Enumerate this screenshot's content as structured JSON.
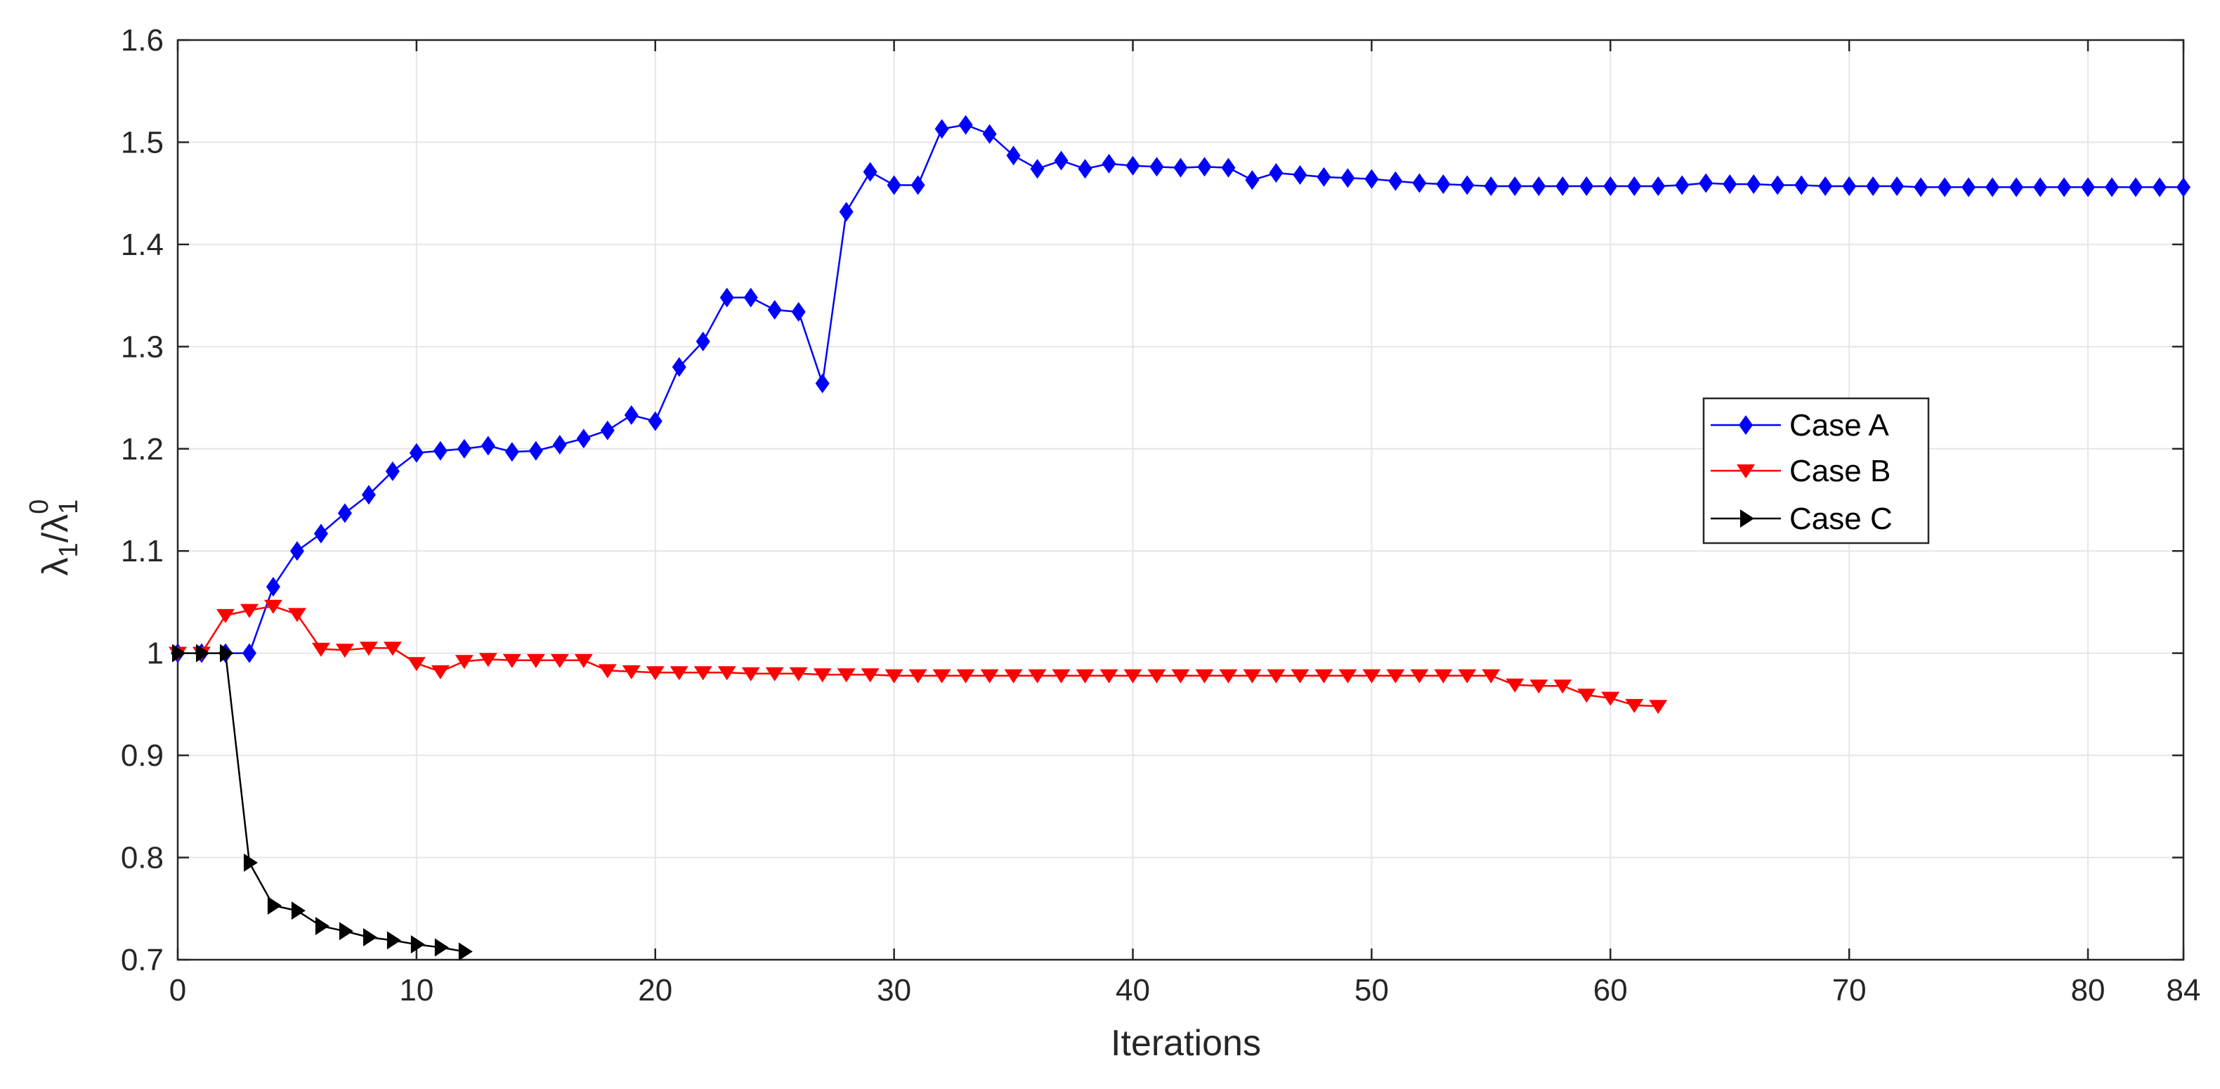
{
  "chart_data": {
    "type": "line",
    "xlabel": "Iterations",
    "ylabel": {
      "base": "λ",
      "sub1": "1",
      "slash": "/λ",
      "sub2": "1",
      "sup": "0"
    },
    "xlim": [
      0,
      84
    ],
    "ylim": [
      0.7,
      1.6
    ],
    "xticks": [
      0,
      10,
      20,
      30,
      40,
      50,
      60,
      70,
      80,
      84
    ],
    "yticks": [
      0.7,
      0.8,
      0.9,
      1,
      1.1,
      1.2,
      1.3,
      1.4,
      1.5,
      1.6
    ],
    "ytick_labels": [
      "0.7",
      "0.8",
      "0.9",
      "1",
      "1.1",
      "1.2",
      "1.3",
      "1.4",
      "1.5",
      "1.6"
    ],
    "grid": true,
    "legend_position": "right",
    "series": [
      {
        "name": "Case A",
        "color": "#0000ff",
        "marker": "diamond",
        "x": [
          0,
          1,
          2,
          3,
          4,
          5,
          6,
          7,
          8,
          9,
          10,
          11,
          12,
          13,
          14,
          15,
          16,
          17,
          18,
          19,
          20,
          21,
          22,
          23,
          24,
          25,
          26,
          27,
          28,
          29,
          30,
          31,
          32,
          33,
          34,
          35,
          36,
          37,
          38,
          39,
          40,
          41,
          42,
          43,
          44,
          45,
          46,
          47,
          48,
          49,
          50,
          51,
          52,
          53,
          54,
          55,
          56,
          57,
          58,
          59,
          60,
          61,
          62,
          63,
          64,
          65,
          66,
          67,
          68,
          69,
          70,
          71,
          72,
          73,
          74,
          75,
          76,
          77,
          78,
          79,
          80,
          81,
          82,
          83,
          84
        ],
        "values": [
          1.0,
          1.0,
          1.0,
          1.0,
          1.065,
          1.1,
          1.117,
          1.137,
          1.155,
          1.178,
          1.196,
          1.198,
          1.2,
          1.203,
          1.197,
          1.198,
          1.204,
          1.21,
          1.218,
          1.233,
          1.227,
          1.28,
          1.305,
          1.348,
          1.348,
          1.336,
          1.334,
          1.264,
          1.432,
          1.471,
          1.458,
          1.458,
          1.513,
          1.517,
          1.508,
          1.487,
          1.474,
          1.482,
          1.474,
          1.479,
          1.477,
          1.476,
          1.475,
          1.476,
          1.475,
          1.463,
          1.47,
          1.468,
          1.466,
          1.465,
          1.464,
          1.462,
          1.46,
          1.459,
          1.458,
          1.457,
          1.457,
          1.457,
          1.457,
          1.457,
          1.457,
          1.457,
          1.457,
          1.458,
          1.46,
          1.459,
          1.459,
          1.458,
          1.458,
          1.457,
          1.457,
          1.457,
          1.457,
          1.456,
          1.456,
          1.456,
          1.456,
          1.456,
          1.456,
          1.456,
          1.456,
          1.456,
          1.456,
          1.456,
          1.456
        ]
      },
      {
        "name": "Case B",
        "color": "#ff0000",
        "marker": "triangle-down",
        "x": [
          0,
          1,
          2,
          3,
          4,
          5,
          6,
          7,
          8,
          9,
          10,
          11,
          12,
          13,
          14,
          15,
          16,
          17,
          18,
          19,
          20,
          21,
          22,
          23,
          24,
          25,
          26,
          27,
          28,
          29,
          30,
          31,
          32,
          33,
          34,
          35,
          36,
          37,
          38,
          39,
          40,
          41,
          42,
          43,
          44,
          45,
          46,
          47,
          48,
          49,
          50,
          51,
          52,
          53,
          54,
          55,
          56,
          57,
          58,
          59,
          60,
          61,
          62
        ],
        "values": [
          1.0,
          1.0,
          1.037,
          1.042,
          1.046,
          1.038,
          1.004,
          1.003,
          1.005,
          1.005,
          0.99,
          0.982,
          0.992,
          0.994,
          0.993,
          0.993,
          0.993,
          0.993,
          0.983,
          0.982,
          0.981,
          0.981,
          0.981,
          0.981,
          0.98,
          0.98,
          0.98,
          0.979,
          0.979,
          0.979,
          0.978,
          0.978,
          0.978,
          0.978,
          0.978,
          0.978,
          0.978,
          0.978,
          0.978,
          0.978,
          0.978,
          0.978,
          0.978,
          0.978,
          0.978,
          0.978,
          0.978,
          0.978,
          0.978,
          0.978,
          0.978,
          0.978,
          0.978,
          0.978,
          0.978,
          0.978,
          0.969,
          0.968,
          0.968,
          0.959,
          0.956,
          0.949,
          0.948
        ]
      },
      {
        "name": "Case C",
        "color": "#000000",
        "marker": "triangle-right",
        "x": [
          0,
          1,
          2,
          3,
          4,
          5,
          6,
          7,
          8,
          9,
          10,
          11,
          12
        ],
        "values": [
          1.0,
          1.0,
          1.0,
          0.795,
          0.753,
          0.748,
          0.733,
          0.728,
          0.722,
          0.719,
          0.715,
          0.712,
          0.708
        ]
      }
    ]
  }
}
